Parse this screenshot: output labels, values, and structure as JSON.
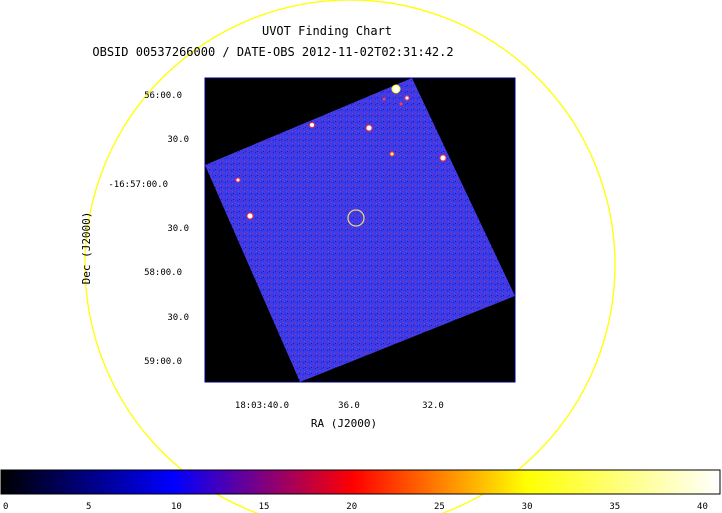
{
  "chart_data": {
    "type": "heatmap",
    "title": "UVOT Finding Chart",
    "subtitle": "OBSID 00537266000 / DATE-OBS 2012-11-02T02:31:42.2",
    "xlabel": "RA (J2000)",
    "ylabel": "Dec (J2000)",
    "x_ticks": [
      "18:03:40.0",
      "36.0",
      "32.0"
    ],
    "y_ticks": [
      "56:00.0",
      "30.0",
      "-16:57:00.0",
      "30.0",
      "58:00.0",
      "30.0",
      "59:00.0"
    ],
    "colorbar": {
      "range": [
        0,
        41
      ],
      "tick_values": [
        0,
        5,
        10,
        15,
        20,
        25,
        30,
        35,
        40
      ],
      "tick_labels": [
        "0",
        "5",
        "10",
        "15",
        "20",
        "25",
        "30",
        "35",
        "40"
      ],
      "colormap": [
        "#000000",
        "#0000ff",
        "#ff0000",
        "#ffff00",
        "#ffffff"
      ]
    },
    "colors": {
      "image_background": "#3a3ae6",
      "frame": "#000080",
      "field_circle": "#ffff00",
      "target_marker": "#e8d080"
    }
  }
}
